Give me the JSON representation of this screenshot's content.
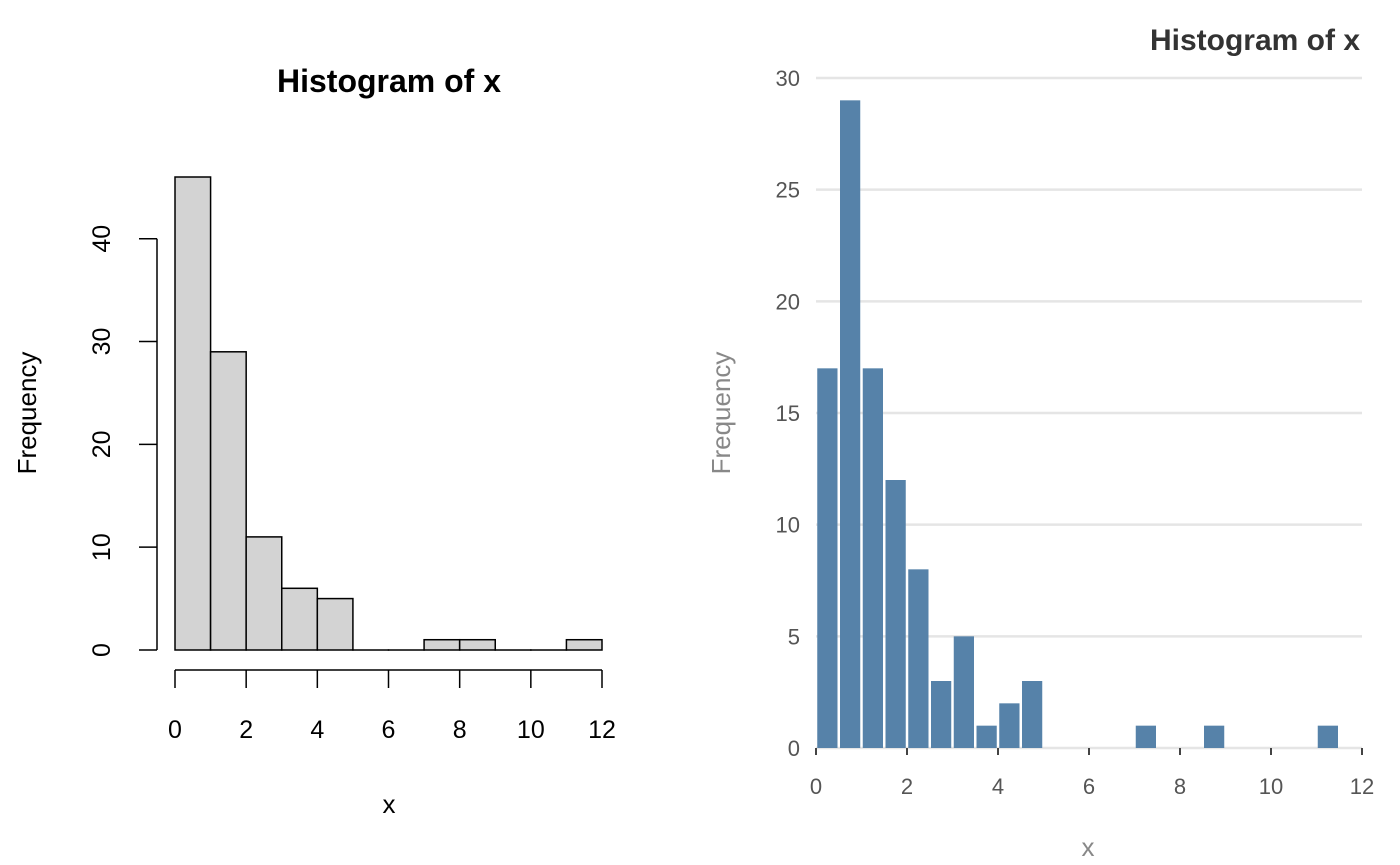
{
  "chart_data": [
    {
      "type": "bar",
      "style": "base-r",
      "title": "Histogram of x",
      "xlabel": "x",
      "ylabel": "Frequency",
      "bins": [
        {
          "x0": 0,
          "x1": 1,
          "count": 46
        },
        {
          "x0": 1,
          "x1": 2,
          "count": 29
        },
        {
          "x0": 2,
          "x1": 3,
          "count": 11
        },
        {
          "x0": 3,
          "x1": 4,
          "count": 6
        },
        {
          "x0": 4,
          "x1": 5,
          "count": 5
        },
        {
          "x0": 5,
          "x1": 6,
          "count": 0
        },
        {
          "x0": 6,
          "x1": 7,
          "count": 0
        },
        {
          "x0": 7,
          "x1": 8,
          "count": 1
        },
        {
          "x0": 8,
          "x1": 9,
          "count": 1
        },
        {
          "x0": 9,
          "x1": 10,
          "count": 0
        },
        {
          "x0": 10,
          "x1": 11,
          "count": 0
        },
        {
          "x0": 11,
          "x1": 12,
          "count": 1
        }
      ],
      "xticks": [
        0,
        2,
        4,
        6,
        8,
        10,
        12
      ],
      "yticks": [
        0,
        10,
        20,
        30,
        40
      ],
      "xlim": [
        0,
        12
      ],
      "ylim": [
        0,
        46
      ],
      "grid": false,
      "colors": {
        "bar_fill": "#d3d3d3",
        "bar_stroke": "#000000"
      }
    },
    {
      "type": "bar",
      "style": "ggplot-minimal",
      "title": "Histogram of x",
      "xlabel": "x",
      "ylabel": "Frequency",
      "bins": [
        {
          "x0": 0,
          "x1": 0.5,
          "count": 17
        },
        {
          "x0": 0.5,
          "x1": 1,
          "count": 29
        },
        {
          "x0": 1,
          "x1": 1.5,
          "count": 17
        },
        {
          "x0": 1.5,
          "x1": 2,
          "count": 12
        },
        {
          "x0": 2,
          "x1": 2.5,
          "count": 8
        },
        {
          "x0": 2.5,
          "x1": 3,
          "count": 3
        },
        {
          "x0": 3,
          "x1": 3.5,
          "count": 5
        },
        {
          "x0": 3.5,
          "x1": 4,
          "count": 1
        },
        {
          "x0": 4,
          "x1": 4.5,
          "count": 2
        },
        {
          "x0": 4.5,
          "x1": 5,
          "count": 3
        },
        {
          "x0": 7,
          "x1": 7.5,
          "count": 1
        },
        {
          "x0": 8.5,
          "x1": 9,
          "count": 1
        },
        {
          "x0": 11,
          "x1": 11.5,
          "count": 1
        }
      ],
      "xticks": [
        0,
        2,
        4,
        6,
        8,
        10,
        12
      ],
      "yticks": [
        0,
        5,
        10,
        15,
        20,
        25,
        30
      ],
      "xlim": [
        0,
        12
      ],
      "ylim": [
        0,
        30
      ],
      "grid": true,
      "colors": {
        "bar_fill": "#5682a9",
        "grid": "#e5e5e5"
      }
    }
  ]
}
